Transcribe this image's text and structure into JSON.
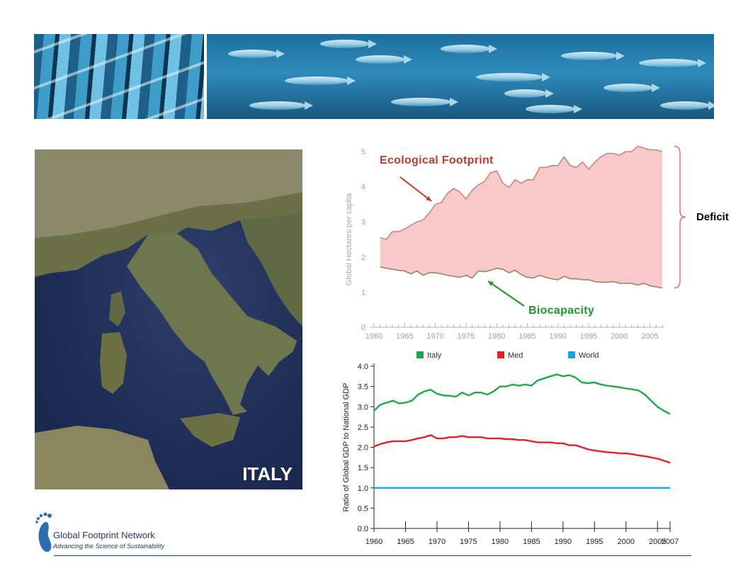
{
  "map": {
    "label": "ITALY"
  },
  "logo": {
    "name": "Global Footprint Network",
    "tagline": "Advancing the Science of Sustainability"
  },
  "annotations": {
    "ecological_footprint": "Ecological Footprint",
    "biocapacity": "Biocapacity",
    "deficit": "Deficit"
  },
  "colors": {
    "footprint": "#c0392b",
    "biocapacity_arrow": "#1a9a2a",
    "deficit_fill": "#f9c8c8",
    "italy": "#1fa84b",
    "med": "#e3202b",
    "world": "#1aa3dc"
  },
  "chart_data": [
    {
      "type": "area",
      "title": "",
      "ylabel": "Global Hectares per capita",
      "xlabel": "",
      "xlim": [
        1960,
        2007
      ],
      "ylim": [
        0,
        5
      ],
      "yticks": [
        0,
        1,
        2,
        3,
        4,
        5
      ],
      "xticks": [
        1960,
        1965,
        1970,
        1975,
        1980,
        1985,
        1990,
        1995,
        2000,
        2005
      ],
      "series": [
        {
          "name": "Ecological Footprint",
          "x": [
            1961,
            1962,
            1963,
            1964,
            1965,
            1966,
            1967,
            1968,
            1969,
            1970,
            1971,
            1972,
            1973,
            1974,
            1975,
            1976,
            1977,
            1978,
            1979,
            1980,
            1981,
            1982,
            1983,
            1984,
            1985,
            1986,
            1987,
            1988,
            1989,
            1990,
            1991,
            1992,
            1993,
            1994,
            1995,
            1996,
            1997,
            1998,
            1999,
            2000,
            2001,
            2002,
            2003,
            2004,
            2005,
            2006,
            2007
          ],
          "values": [
            2.55,
            2.5,
            2.72,
            2.72,
            2.8,
            2.9,
            3.0,
            3.05,
            3.25,
            3.5,
            3.55,
            3.82,
            3.95,
            3.85,
            3.65,
            3.9,
            4.05,
            4.15,
            4.4,
            4.45,
            4.1,
            3.98,
            4.2,
            4.1,
            4.2,
            4.2,
            4.55,
            4.55,
            4.6,
            4.6,
            4.85,
            4.6,
            4.55,
            4.7,
            4.5,
            4.7,
            4.85,
            4.95,
            4.95,
            4.9,
            5.0,
            5.0,
            5.15,
            5.1,
            5.05,
            5.05,
            5.0
          ]
        },
        {
          "name": "Biocapacity",
          "x": [
            1961,
            1962,
            1963,
            1964,
            1965,
            1966,
            1967,
            1968,
            1969,
            1970,
            1971,
            1972,
            1973,
            1974,
            1975,
            1976,
            1977,
            1978,
            1979,
            1980,
            1981,
            1982,
            1983,
            1984,
            1985,
            1986,
            1987,
            1988,
            1989,
            1990,
            1991,
            1992,
            1993,
            1994,
            1995,
            1996,
            1997,
            1998,
            1999,
            2000,
            2001,
            2002,
            2003,
            2004,
            2005,
            2006,
            2007
          ],
          "values": [
            1.72,
            1.68,
            1.65,
            1.62,
            1.6,
            1.52,
            1.6,
            1.48,
            1.55,
            1.55,
            1.52,
            1.48,
            1.45,
            1.42,
            1.48,
            1.4,
            1.6,
            1.58,
            1.62,
            1.68,
            1.65,
            1.55,
            1.62,
            1.5,
            1.42,
            1.4,
            1.48,
            1.42,
            1.38,
            1.35,
            1.45,
            1.38,
            1.38,
            1.35,
            1.35,
            1.3,
            1.28,
            1.28,
            1.3,
            1.25,
            1.25,
            1.25,
            1.2,
            1.25,
            1.18,
            1.15,
            1.12
          ]
        }
      ]
    },
    {
      "type": "line",
      "title": "",
      "ylabel": "Ratio of Global GDP to National GDP",
      "xlabel": "",
      "xlim": [
        1960,
        2007
      ],
      "ylim": [
        0,
        4
      ],
      "yticks": [
        "0.0",
        "0.5",
        "1.0",
        "1.5",
        "2.0",
        "2.5",
        "3.0",
        "3.5",
        "4.0"
      ],
      "xticks": [
        "1960",
        "1965",
        "1970",
        "1975",
        "1980",
        "1985",
        "1990",
        "1995",
        "2000",
        "2005",
        "2007"
      ],
      "legend": [
        "Italy",
        "Med",
        "World"
      ],
      "series": [
        {
          "name": "Italy",
          "x": [
            1960,
            1961,
            1962,
            1963,
            1964,
            1965,
            1966,
            1967,
            1968,
            1969,
            1970,
            1971,
            1972,
            1973,
            1974,
            1975,
            1976,
            1977,
            1978,
            1979,
            1980,
            1981,
            1982,
            1983,
            1984,
            1985,
            1986,
            1987,
            1988,
            1989,
            1990,
            1991,
            1992,
            1993,
            1994,
            1995,
            1996,
            1997,
            1998,
            1999,
            2000,
            2001,
            2002,
            2003,
            2004,
            2005,
            2006,
            2007
          ],
          "values": [
            2.9,
            3.05,
            3.1,
            3.15,
            3.08,
            3.1,
            3.15,
            3.3,
            3.38,
            3.42,
            3.32,
            3.28,
            3.27,
            3.25,
            3.35,
            3.28,
            3.35,
            3.35,
            3.3,
            3.38,
            3.5,
            3.5,
            3.55,
            3.52,
            3.55,
            3.52,
            3.65,
            3.7,
            3.75,
            3.8,
            3.75,
            3.78,
            3.72,
            3.6,
            3.58,
            3.6,
            3.55,
            3.52,
            3.5,
            3.48,
            3.45,
            3.43,
            3.4,
            3.3,
            3.15,
            3.0,
            2.9,
            2.82
          ]
        },
        {
          "name": "Med",
          "x": [
            1960,
            1961,
            1962,
            1963,
            1964,
            1965,
            1966,
            1967,
            1968,
            1969,
            1970,
            1971,
            1972,
            1973,
            1974,
            1975,
            1976,
            1977,
            1978,
            1979,
            1980,
            1981,
            1982,
            1983,
            1984,
            1985,
            1986,
            1987,
            1988,
            1989,
            1990,
            1991,
            1992,
            1993,
            1994,
            1995,
            1996,
            1997,
            1998,
            1999,
            2000,
            2001,
            2002,
            2003,
            2004,
            2005,
            2006,
            2007
          ],
          "values": [
            2.02,
            2.08,
            2.12,
            2.15,
            2.15,
            2.15,
            2.18,
            2.22,
            2.25,
            2.3,
            2.22,
            2.22,
            2.25,
            2.25,
            2.28,
            2.25,
            2.25,
            2.25,
            2.22,
            2.22,
            2.22,
            2.2,
            2.2,
            2.18,
            2.18,
            2.15,
            2.12,
            2.12,
            2.12,
            2.1,
            2.1,
            2.05,
            2.05,
            2.0,
            1.95,
            1.92,
            1.9,
            1.88,
            1.87,
            1.85,
            1.85,
            1.83,
            1.8,
            1.78,
            1.75,
            1.72,
            1.67,
            1.62
          ]
        },
        {
          "name": "World",
          "x": [
            1960,
            2007
          ],
          "values": [
            1.0,
            1.0
          ]
        }
      ]
    }
  ]
}
